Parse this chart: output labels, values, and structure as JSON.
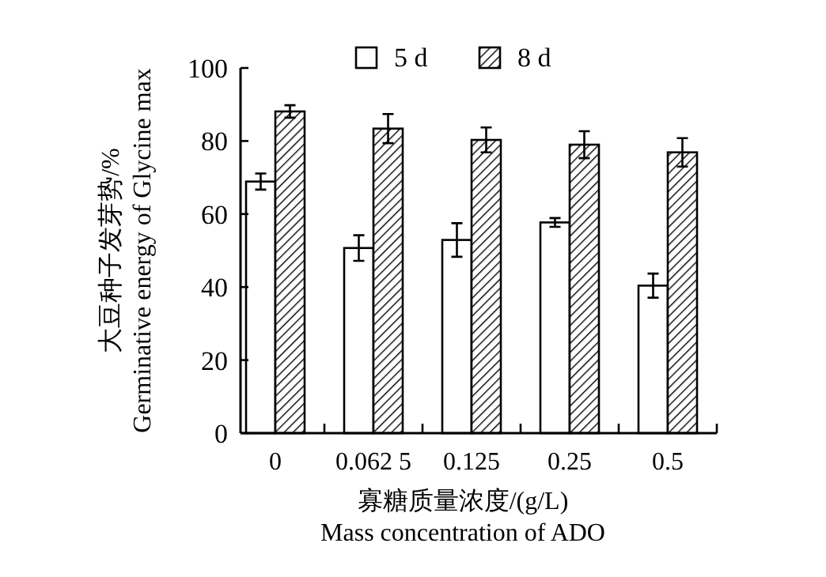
{
  "chart_data": {
    "type": "bar",
    "categories": [
      "0",
      "0.062 5",
      "0.125",
      "0.25",
      "0.5"
    ],
    "series": [
      {
        "name": "5 d",
        "color": "#ffffff",
        "values": [
          68.9,
          50.7,
          52.9,
          57.7,
          40.4
        ],
        "errors": [
          2.2,
          3.5,
          4.6,
          1.2,
          3.3
        ]
      },
      {
        "name": "8 d",
        "color": "#000000",
        "values": [
          88.1,
          83.4,
          80.3,
          79.0,
          76.9
        ],
        "errors": [
          1.7,
          4.0,
          3.4,
          3.7,
          3.9
        ]
      }
    ],
    "ylim": [
      0,
      100
    ],
    "yticks": [
      0,
      20,
      40,
      60,
      80,
      100
    ],
    "ylabel": "大豆种子发芽势/%\nGerminative energy of Glycine max",
    "xlabel": "寡糖质量浓度/(g/L)\nMass concentration of ADO",
    "legend": "top",
    "grid": false
  }
}
